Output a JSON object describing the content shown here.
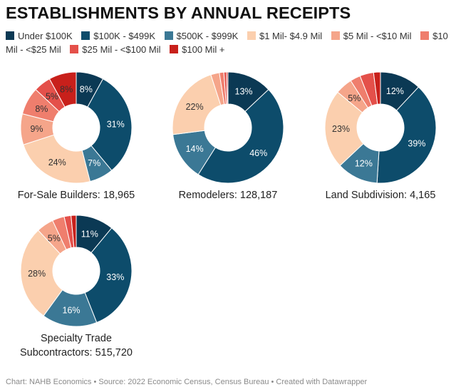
{
  "title": "ESTABLISHMENTS BY ANNUAL RECEIPTS",
  "legend": [
    {
      "label": "Under $100K",
      "color": "#0b3954"
    },
    {
      "label": "$100K - $499K",
      "color": "#0d4c6b"
    },
    {
      "label": "$500K - $999K",
      "color": "#3b7895"
    },
    {
      "label": "$1 Mil- $4.9 Mil",
      "color": "#fbcfae"
    },
    {
      "label": "$5 Mil - <$10 Mil",
      "color": "#f5a58a"
    },
    {
      "label": "$10 Mil - <$25 Mil",
      "color": "#ef7e6d"
    },
    {
      "label": "$25 Mil - <$100 Mil",
      "color": "#e4504a"
    },
    {
      "label": "$100 Mil +",
      "color": "#c8201b"
    }
  ],
  "chart_data": [
    {
      "type": "pie",
      "title": "For-Sale Builders: 18,965",
      "categories": [
        "Under $100K",
        "$100K - $499K",
        "$500K - $999K",
        "$1 Mil- $4.9 Mil",
        "$5 Mil - <$10 Mil",
        "$10 Mil - <$25 Mil",
        "$25 Mil - <$100 Mil",
        "$100 Mil +"
      ],
      "values": [
        8,
        31,
        7,
        24,
        9,
        8,
        5,
        8
      ],
      "labels": [
        "8%",
        "31%",
        "7%",
        "24%",
        "9%",
        "8%",
        "5%",
        "8%"
      ]
    },
    {
      "type": "pie",
      "title": "Remodelers: 128,187",
      "categories": [
        "Under $100K",
        "$100K - $499K",
        "$500K - $999K",
        "$1 Mil- $4.9 Mil",
        "$5 Mil - <$10 Mil",
        "$10 Mil - <$25 Mil",
        "$25 Mil - <$100 Mil",
        "$100 Mil +"
      ],
      "values": [
        13,
        46,
        14,
        22,
        2.5,
        1.3,
        0.8,
        0.4
      ],
      "labels": [
        "13%",
        "46%",
        "14%",
        "22%",
        "",
        "",
        "",
        ""
      ]
    },
    {
      "type": "pie",
      "title": "Land Subdivision: 4,165",
      "categories": [
        "Under $100K",
        "$100K - $499K",
        "$500K - $999K",
        "$1 Mil- $4.9 Mil",
        "$5 Mil - <$10 Mil",
        "$10 Mil - <$25 Mil",
        "$25 Mil - <$100 Mil",
        "$100 Mil +"
      ],
      "values": [
        12,
        39,
        12,
        23,
        5,
        3,
        4,
        2
      ],
      "labels": [
        "12%",
        "39%",
        "12%",
        "23%",
        "5%",
        "",
        "",
        ""
      ]
    },
    {
      "type": "pie",
      "title": "Specialty Trade Subcontractors: 515,720",
      "categories": [
        "Under $100K",
        "$100K - $499K",
        "$500K - $999K",
        "$1 Mil- $4.9 Mil",
        "$5 Mil - <$10 Mil",
        "$10 Mil - <$25 Mil",
        "$25 Mil - <$100 Mil",
        "$100 Mil +"
      ],
      "values": [
        11,
        33,
        16,
        28,
        5,
        3.5,
        2,
        1.5
      ],
      "labels": [
        "11%",
        "33%",
        "16%",
        "28%",
        "5%",
        "",
        "",
        ""
      ]
    }
  ],
  "footer": "Chart: NAHB Economics • Source: 2022 Economic Census, Census Bureau • Created with Datawrapper"
}
